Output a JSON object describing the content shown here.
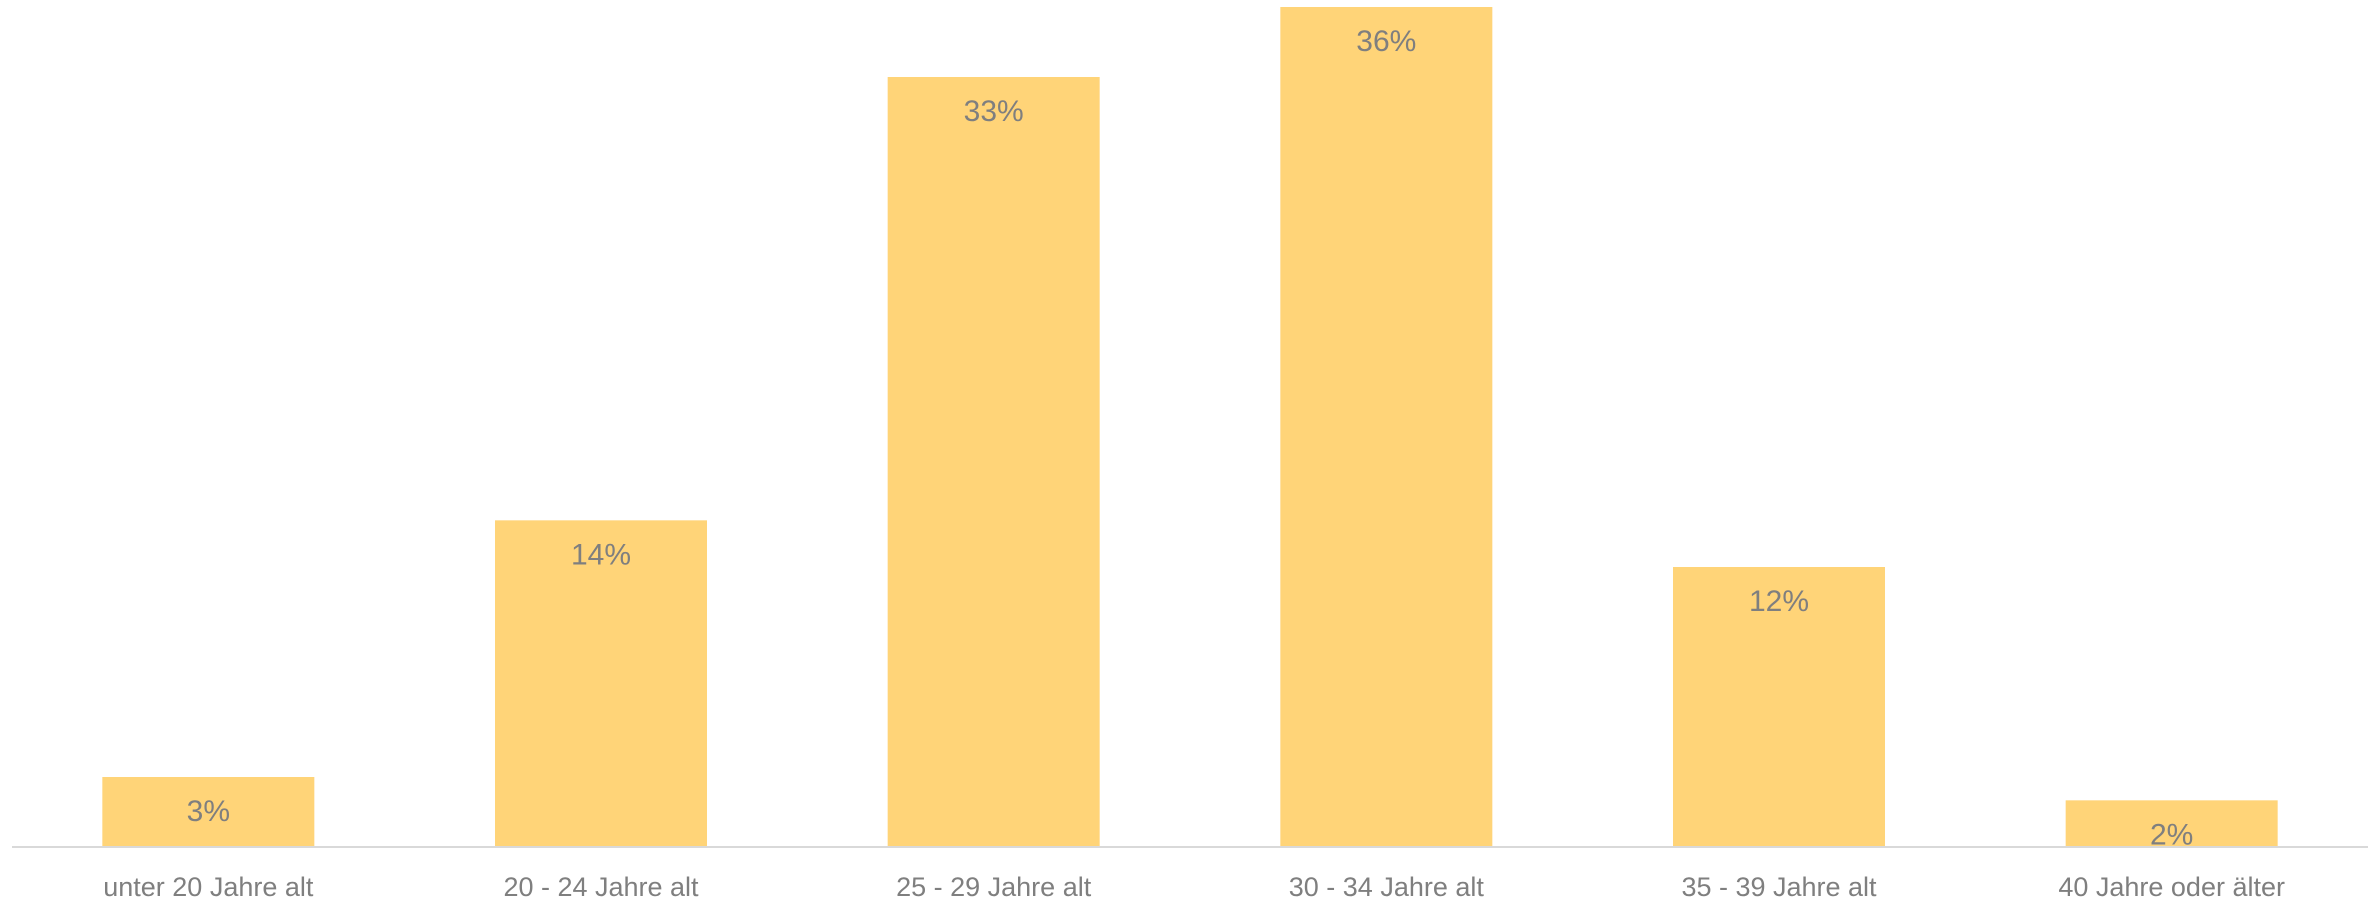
{
  "chart_data": {
    "type": "bar",
    "categories": [
      "unter 20 Jahre alt",
      "20 - 24 Jahre alt",
      "25 - 29 Jahre alt",
      "30 - 34 Jahre alt",
      "35 - 39 Jahre alt",
      "40 Jahre oder älter"
    ],
    "values": [
      3,
      14,
      33,
      36,
      12,
      2
    ],
    "value_labels": [
      "3%",
      "14%",
      "33%",
      "36%",
      "12%",
      "2%"
    ],
    "value_unit": "%",
    "title": "",
    "xlabel": "",
    "ylabel": "",
    "ylim": [
      0,
      36
    ],
    "grid": false,
    "legend": "none",
    "bar_color": "#FFD478",
    "label_color": "#7F7F7F",
    "axis_color": "#D9D9D9"
  }
}
